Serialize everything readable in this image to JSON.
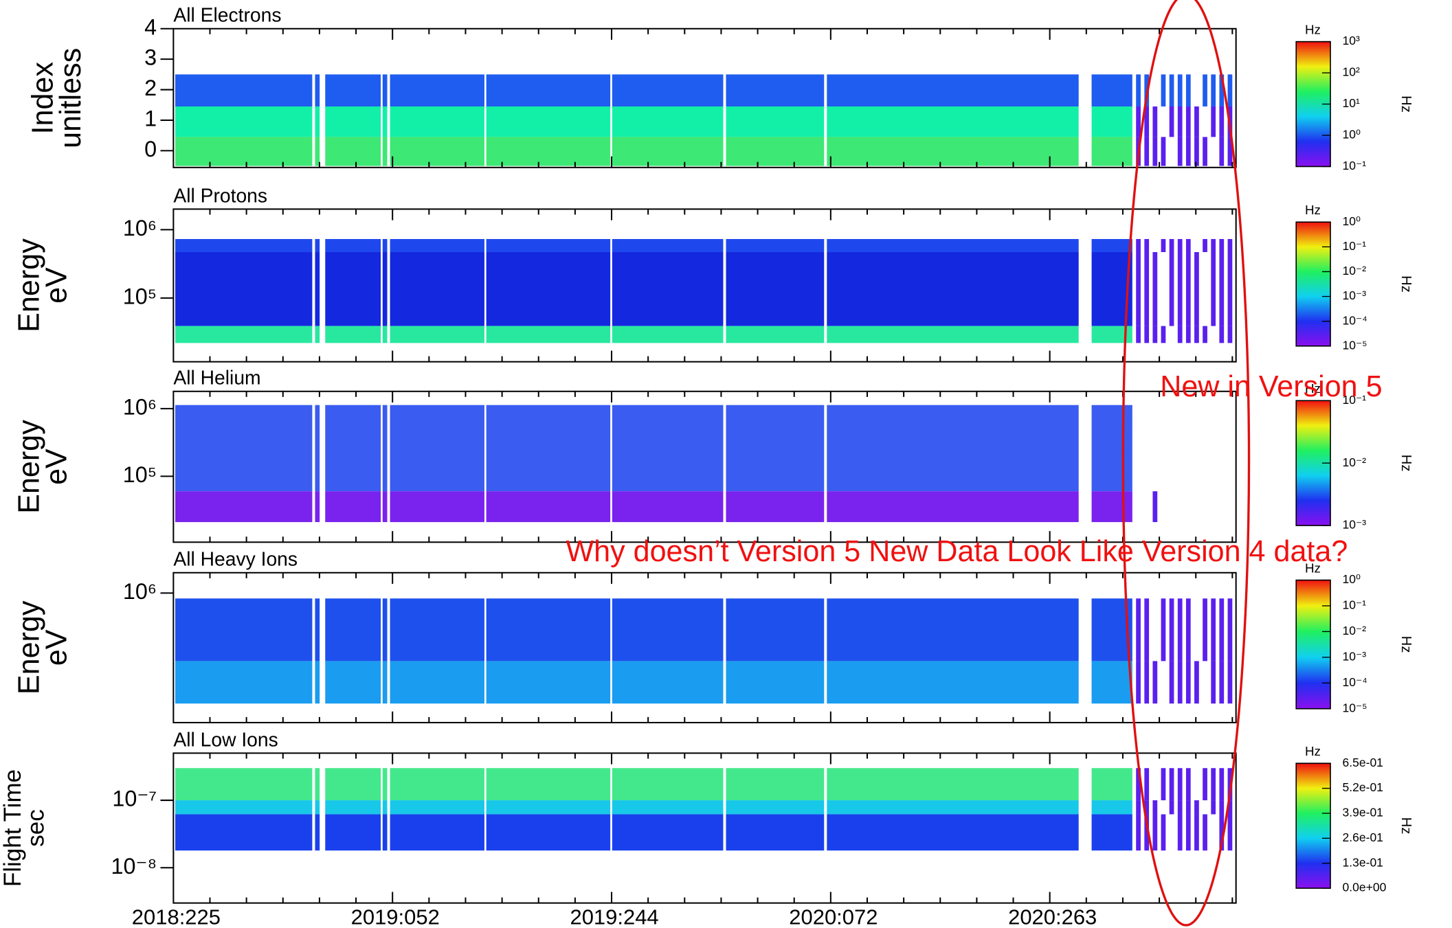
{
  "chart_data": [
    {
      "type": "spectrogram",
      "title": "All Electrons",
      "ylabel": [
        "Index",
        "unitless"
      ],
      "ylog": false,
      "ylim": [
        -0.55,
        4
      ],
      "yticks": [
        0,
        1,
        2,
        3,
        4
      ],
      "bands": [
        {
          "lo": 1.45,
          "hi": 2.5,
          "color": "#1f5cf0"
        },
        {
          "lo": 0.45,
          "hi": 1.45,
          "color": "#12f0a8"
        },
        {
          "lo": -0.5,
          "hi": 0.45,
          "color": "#3ee874"
        }
      ],
      "colorbar": {
        "label": "Hz",
        "log": true,
        "ticks": [
          {
            "value": 0.1,
            "label": "10⁻¹"
          },
          {
            "value": 1,
            "label": "10⁰"
          },
          {
            "value": 10,
            "label": "10¹"
          },
          {
            "value": 100,
            "label": "10²"
          },
          {
            "value": 1000,
            "label": "10³"
          }
        ]
      }
    },
    {
      "type": "spectrogram",
      "title": "All Protons",
      "ylabel": [
        "Energy",
        "eV"
      ],
      "ylog": true,
      "ylim": [
        11700,
        2000000
      ],
      "yticks": [
        {
          "value": 100000,
          "label": "10⁵"
        },
        {
          "value": 1000000,
          "label": "10⁶"
        }
      ],
      "bands": [
        {
          "lo": 470000,
          "hi": 730000,
          "color": "#1e48ee"
        },
        {
          "lo": 39000,
          "hi": 470000,
          "color": "#1428e0"
        },
        {
          "lo": 22000,
          "hi": 39000,
          "color": "#28e8a0"
        }
      ],
      "colorbar": {
        "label": "Hz",
        "log": true,
        "ticks": [
          {
            "value": 1e-05,
            "label": "10⁻⁵"
          },
          {
            "value": 0.0001,
            "label": "10⁻⁴"
          },
          {
            "value": 0.001,
            "label": "10⁻³"
          },
          {
            "value": 0.01,
            "label": "10⁻²"
          },
          {
            "value": 0.1,
            "label": "10⁻¹"
          },
          {
            "value": 1,
            "label": "10⁰"
          }
        ]
      }
    },
    {
      "type": "spectrogram",
      "title": "All Helium",
      "ylabel": [
        "Energy",
        "eV"
      ],
      "ylog": true,
      "ylim": [
        10600,
        1800000
      ],
      "yticks": [
        {
          "value": 100000,
          "label": "10⁵"
        },
        {
          "value": 1000000,
          "label": "10⁶"
        }
      ],
      "bands": [
        {
          "lo": 60000,
          "hi": 1130000,
          "color": "#3a5cf0"
        },
        {
          "lo": 21000,
          "hi": 60000,
          "color": "#7a22ee"
        }
      ],
      "colorbar": {
        "label": "Hz",
        "log": true,
        "ticks": [
          {
            "value": 0.001,
            "label": "10⁻³"
          },
          {
            "value": 0.01,
            "label": "10⁻²"
          },
          {
            "value": 0.1,
            "label": "10⁻¹"
          }
        ]
      }
    },
    {
      "type": "spectrogram",
      "title": "All Heavy Ions",
      "ylabel": [
        "Energy",
        "eV"
      ],
      "ylog": true,
      "ylim": [
        12000,
        2000000
      ],
      "yticks": [
        {
          "value": 1000000,
          "label": "10⁶"
        }
      ],
      "bands": [
        {
          "lo": 98000,
          "hi": 830000,
          "color": "#1e50ee"
        },
        {
          "lo": 23000,
          "hi": 98000,
          "color": "#1a9cf0"
        }
      ],
      "colorbar": {
        "label": "Hz",
        "log": true,
        "ticks": [
          {
            "value": 1e-05,
            "label": "10⁻⁵"
          },
          {
            "value": 0.0001,
            "label": "10⁻⁴"
          },
          {
            "value": 0.001,
            "label": "10⁻³"
          },
          {
            "value": 0.01,
            "label": "10⁻²"
          },
          {
            "value": 0.1,
            "label": "10⁻¹"
          },
          {
            "value": 1,
            "label": "10⁰"
          }
        ]
      }
    },
    {
      "type": "spectrogram",
      "title": "All Low Ions",
      "ylabel": [
        "Flight Time",
        "sec"
      ],
      "ylog": true,
      "ylim": [
        3e-09,
        5e-07
      ],
      "yticks": [
        {
          "value": 1e-08,
          "label": "10⁻⁸"
        },
        {
          "value": 1e-07,
          "label": "10⁻⁷"
        }
      ],
      "bands": [
        {
          "lo": 1e-07,
          "hi": 3e-07,
          "color": "#44e88c"
        },
        {
          "lo": 6.2e-08,
          "hi": 1e-07,
          "color": "#18c8e8"
        },
        {
          "lo": 1.8e-08,
          "hi": 6.2e-08,
          "color": "#1a40ee"
        }
      ],
      "colorbar": {
        "label": "Hz",
        "log": false,
        "ticks": [
          {
            "value": 0,
            "label": "0.0e+00"
          },
          {
            "value": 0.13,
            "label": "1.3e-01"
          },
          {
            "value": 0.26,
            "label": "2.6e-01"
          },
          {
            "value": 0.39,
            "label": "3.9e-01"
          },
          {
            "value": 0.52,
            "label": "5.2e-01"
          },
          {
            "value": 0.65,
            "label": "6.5e-01"
          }
        ]
      }
    }
  ],
  "x_tick_labels": [
    "2018:225",
    "2019:052",
    "2019:244",
    "2020:072",
    "2020:263"
  ],
  "annotations": [
    "New in Version 5",
    "Why doesn’t Version 5 New Data Look Like Version 4 data?"
  ]
}
